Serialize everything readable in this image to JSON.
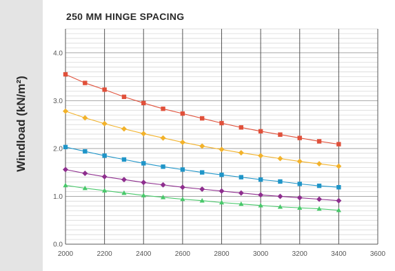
{
  "chart_data": {
    "type": "line",
    "title": "250 MM HINGE SPACING",
    "xlabel": "",
    "ylabel": "Windload (kN/m²)",
    "xlim": [
      2000,
      3600
    ],
    "ylim": [
      0.0,
      4.5
    ],
    "x_ticks": [
      2000,
      2200,
      2400,
      2600,
      2800,
      3000,
      3200,
      3400,
      3600
    ],
    "y_ticks": [
      0.0,
      1.0,
      2.0,
      3.0,
      4.0
    ],
    "y_tick_labels": [
      "0.0",
      "1.0",
      "2.0",
      "3.0",
      "4.0"
    ],
    "grid": true,
    "legend": "none",
    "x": [
      2000,
      2100,
      2200,
      2300,
      2400,
      2500,
      2600,
      2700,
      2800,
      2900,
      3000,
      3100,
      3200,
      3300,
      3400
    ],
    "series": [
      {
        "color": "#e0503a",
        "marker": "square",
        "values": [
          3.55,
          3.37,
          3.23,
          3.08,
          2.95,
          2.83,
          2.73,
          2.63,
          2.53,
          2.44,
          2.36,
          2.29,
          2.22,
          2.15,
          2.09
        ]
      },
      {
        "color": "#f2b22a",
        "marker": "diamond",
        "values": [
          2.78,
          2.64,
          2.52,
          2.41,
          2.31,
          2.22,
          2.13,
          2.05,
          1.98,
          1.91,
          1.85,
          1.79,
          1.73,
          1.68,
          1.63
        ]
      },
      {
        "color": "#1f95c8",
        "marker": "square",
        "values": [
          2.03,
          1.94,
          1.85,
          1.77,
          1.69,
          1.62,
          1.56,
          1.5,
          1.45,
          1.4,
          1.35,
          1.31,
          1.26,
          1.22,
          1.19
        ]
      },
      {
        "color": "#8e2e8e",
        "marker": "diamond",
        "values": [
          1.56,
          1.48,
          1.41,
          1.35,
          1.29,
          1.24,
          1.19,
          1.15,
          1.11,
          1.07,
          1.03,
          1.0,
          0.97,
          0.94,
          0.91
        ]
      },
      {
        "color": "#48c86a",
        "marker": "triangle",
        "values": [
          1.23,
          1.17,
          1.12,
          1.07,
          1.02,
          0.98,
          0.94,
          0.91,
          0.87,
          0.84,
          0.81,
          0.78,
          0.76,
          0.74,
          0.71
        ]
      }
    ]
  }
}
